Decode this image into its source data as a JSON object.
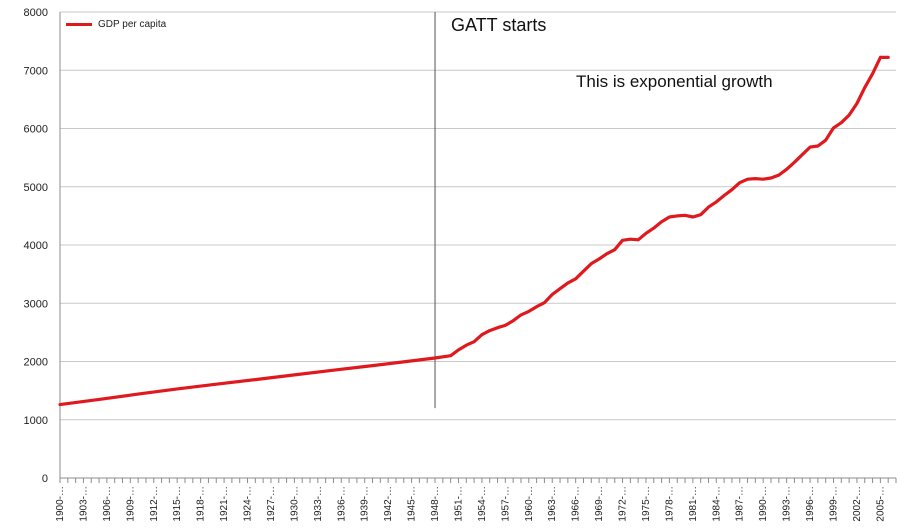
{
  "chart_data": {
    "type": "line",
    "title": "",
    "xlabel": "",
    "ylabel": "",
    "ylim": [
      0,
      8000
    ],
    "yticks": [
      0,
      1000,
      2000,
      3000,
      4000,
      5000,
      6000,
      7000,
      8000
    ],
    "xtick_labels": [
      "1900-…",
      "1903-…",
      "1906-…",
      "1909-…",
      "1912-…",
      "1915-…",
      "1918-…",
      "1921-…",
      "1924-…",
      "1927-…",
      "1930-…",
      "1933-…",
      "1936-…",
      "1939-…",
      "1942-…",
      "1945-…",
      "1948-…",
      "1951-…",
      "1954-…",
      "1957-…",
      "1960-…",
      "1963-…",
      "1966-…",
      "1969-…",
      "1972-…",
      "1975-…",
      "1978-…",
      "1981-…",
      "1984-…",
      "1987-…",
      "1990-…",
      "1993-…",
      "1996-…",
      "1999-…",
      "2002-…",
      "2005-…"
    ],
    "grid": "horizontal",
    "legend_position": "top-left",
    "colors": {
      "series": "#e0191e",
      "grid": "#c8c8c8",
      "axis": "#8c8c8c",
      "vline": "#555555"
    },
    "series": [
      {
        "name": "GDP per capita",
        "x": [
          1900,
          1905,
          1910,
          1915,
          1920,
          1925,
          1930,
          1935,
          1940,
          1945,
          1948,
          1950,
          1951,
          1952,
          1953,
          1954,
          1955,
          1956,
          1957,
          1958,
          1959,
          1960,
          1961,
          1962,
          1963,
          1964,
          1965,
          1966,
          1967,
          1968,
          1969,
          1970,
          1971,
          1972,
          1973,
          1974,
          1975,
          1976,
          1977,
          1978,
          1979,
          1980,
          1981,
          1982,
          1983,
          1984,
          1985,
          1986,
          1987,
          1988,
          1989,
          1990,
          1991,
          1992,
          1993,
          1994,
          1995,
          1996,
          1997,
          1998,
          1999,
          2000,
          2001,
          2002,
          2003,
          2004,
          2005,
          2006
        ],
        "values": [
          1260,
          1350,
          1440,
          1530,
          1610,
          1690,
          1770,
          1850,
          1930,
          2010,
          2060,
          2100,
          2200,
          2280,
          2340,
          2460,
          2530,
          2580,
          2620,
          2700,
          2800,
          2860,
          2940,
          3010,
          3150,
          3250,
          3350,
          3420,
          3550,
          3680,
          3760,
          3850,
          3920,
          4080,
          4100,
          4090,
          4200,
          4290,
          4400,
          4480,
          4500,
          4510,
          4480,
          4520,
          4650,
          4740,
          4850,
          4950,
          5070,
          5130,
          5140,
          5130,
          5150,
          5200,
          5300,
          5420,
          5550,
          5680,
          5700,
          5800,
          6010,
          6100,
          6230,
          6430,
          6700,
          6940,
          7220,
          7220
        ]
      }
    ],
    "vline": {
      "x": 1948,
      "y_top": 8000,
      "y_bottom": 1200
    },
    "annotations": [
      "GATT starts",
      "This is exponential growth"
    ]
  }
}
